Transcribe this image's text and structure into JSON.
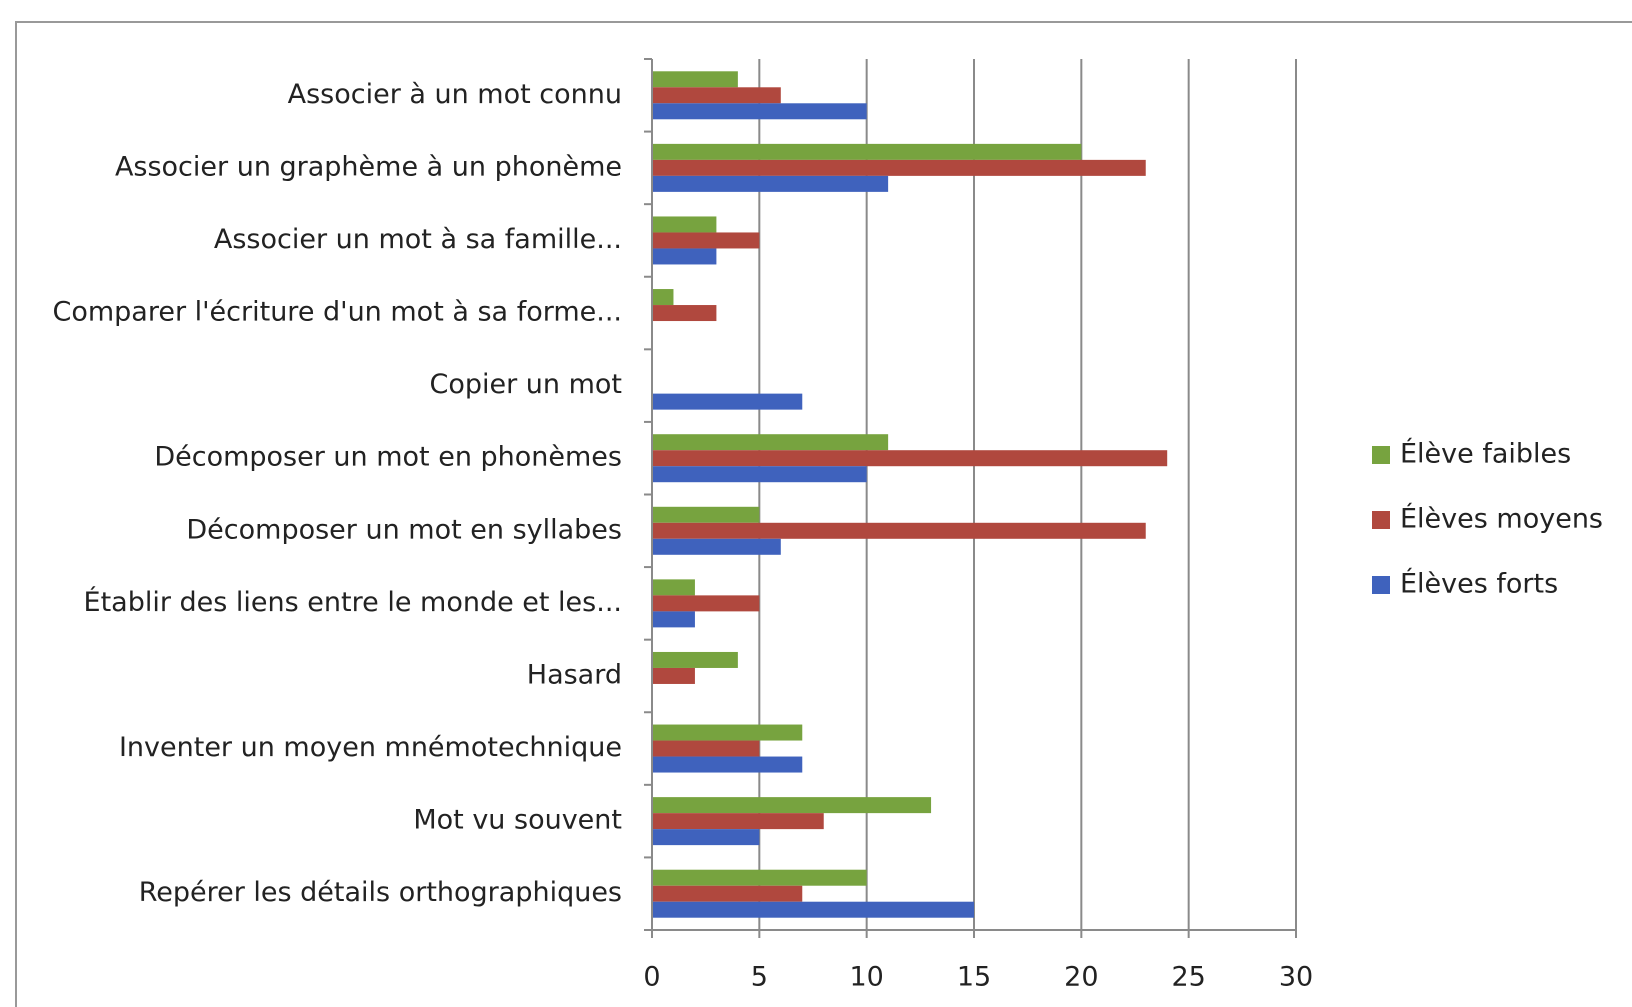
{
  "chart_data": {
    "type": "barh",
    "categories": [
      "Associer à un mot connu",
      "Associer un graphème à un phonème",
      "Associer un mot à sa famille...",
      "Comparer l'écriture d'un mot à sa forme...",
      "Copier un mot",
      "Décomposer un mot en phonèmes",
      "Décomposer un mot en syllabes",
      "Établir des liens entre le monde et les...",
      "Hasard",
      "Inventer un moyen mnémotechnique",
      "Mot vu souvent",
      "Repérer les détails orthographiques"
    ],
    "series": [
      {
        "name": "Élève faibles",
        "color": "#77a33f",
        "values": [
          4,
          20,
          3,
          1,
          0,
          11,
          5,
          2,
          4,
          7,
          13,
          10
        ]
      },
      {
        "name": "Élèves moyens",
        "color": "#b0483e",
        "values": [
          6,
          23,
          5,
          3,
          0,
          24,
          23,
          5,
          2,
          5,
          8,
          7
        ]
      },
      {
        "name": "Élèves forts",
        "color": "#3f62bd",
        "values": [
          10,
          11,
          3,
          0,
          7,
          10,
          6,
          2,
          0,
          7,
          5,
          15
        ]
      }
    ],
    "xlim": [
      0,
      30
    ],
    "xticks": [
      0,
      5,
      10,
      15,
      20,
      25,
      30
    ],
    "grid": true,
    "legend": "right"
  }
}
